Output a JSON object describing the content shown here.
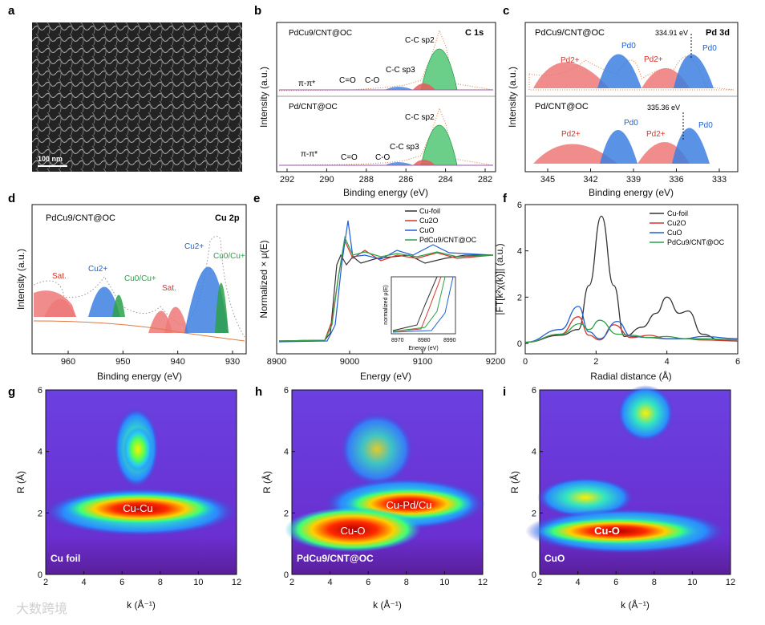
{
  "watermark": "大数跨境",
  "panels": {
    "a": {
      "label": "a",
      "scale_bar": "100 nm"
    },
    "b": {
      "label": "b",
      "element": "C 1s",
      "top_sample": "PdCu9/CNT@OC",
      "bottom_sample": "Pd/CNT@OC",
      "peaks": [
        "π-π*",
        "C=O",
        "C-O",
        "C-C sp3",
        "C-C sp2"
      ],
      "xlabel": "Binding energy (eV)",
      "ylabel": "Intensity (a.u.)",
      "xticks": [
        "292",
        "290",
        "288",
        "286",
        "284",
        "282"
      ]
    },
    "c": {
      "label": "c",
      "element": "Pd 3d",
      "top_sample": "PdCu9/CNT@OC",
      "bottom_sample": "Pd/CNT@OC",
      "top_value": "334.91 eV",
      "bottom_value": "335.36 eV",
      "pd2": "Pd2+",
      "pd0": "Pd0",
      "xlabel": "Binding energy (eV)",
      "ylabel": "Intensity (a.u.)",
      "xticks": [
        "345",
        "342",
        "339",
        "336",
        "333"
      ]
    },
    "d": {
      "label": "d",
      "element": "Cu 2p",
      "sample": "PdCu9/CNT@OC",
      "peaks": [
        "Sat.",
        "Cu2+",
        "Cu0/Cu+",
        "Sat.",
        "Cu2+",
        "Cu0/Cu+"
      ],
      "xlabel": "Binding energy (eV)",
      "ylabel": "Intensity (a.u.)",
      "xticks": [
        "960",
        "950",
        "940",
        "930"
      ]
    },
    "e": {
      "label": "e",
      "xlabel": "Energy (eV)",
      "ylabel": "Normalized × μ(E)",
      "xticks": [
        "8900",
        "9000",
        "9100",
        "9200"
      ],
      "legend": [
        "Cu-foil",
        "Cu2O",
        "CuO",
        "PdCu9/CNT@OC"
      ],
      "inset": {
        "xlabel": "Energy (eV)",
        "ylabel": "normalized μ(E)",
        "xticks": [
          "8970",
          "8980",
          "8990"
        ]
      }
    },
    "f": {
      "label": "f",
      "xlabel": "Radial distance (Å)",
      "ylabel": "|FT[k²χ(k)]| (a.u.)",
      "xticks": [
        "0",
        "2",
        "4",
        "6"
      ],
      "yticks": [
        "0",
        "2",
        "4",
        "6"
      ],
      "legend": [
        "Cu-foil",
        "Cu2O",
        "CuO",
        "PdCu9/CNT@OC"
      ]
    },
    "g": {
      "label": "g",
      "sample": "Cu foil",
      "peak_labels": [
        "Cu-Cu"
      ],
      "xlabel": "k (Å⁻¹)",
      "ylabel": "R (Å)",
      "xticks": [
        "2",
        "4",
        "6",
        "8",
        "10",
        "12"
      ],
      "yticks": [
        "0",
        "2",
        "4",
        "6"
      ]
    },
    "h": {
      "label": "h",
      "sample": "PdCu9/CNT@OC",
      "peak_labels": [
        "Cu-Pd/Cu",
        "Cu-O"
      ],
      "xlabel": "k (Å⁻¹)",
      "ylabel": "R (Å)",
      "xticks": [
        "2",
        "4",
        "6",
        "8",
        "10",
        "12"
      ],
      "yticks": [
        "0",
        "2",
        "4",
        "6"
      ]
    },
    "i": {
      "label": "i",
      "sample": "CuO",
      "peak_labels": [
        "Cu-O"
      ],
      "xlabel": "k (Å⁻¹)",
      "ylabel": "R (Å)",
      "xticks": [
        "2",
        "4",
        "6",
        "8",
        "10",
        "12"
      ],
      "yticks": [
        "0",
        "2",
        "4",
        "6"
      ]
    }
  },
  "chart_data": [
    {
      "panel": "e",
      "type": "line",
      "title": "",
      "xlabel": "Energy (eV)",
      "ylabel": "Normalized × μ(E)",
      "xlim": [
        8900,
        9200
      ],
      "series": [
        {
          "name": "Cu-foil"
        },
        {
          "name": "Cu2O"
        },
        {
          "name": "CuO"
        },
        {
          "name": "PdCu9/CNT@OC"
        }
      ]
    },
    {
      "panel": "f",
      "type": "line",
      "title": "",
      "xlabel": "Radial distance (Å)",
      "ylabel": "|FT[k²χ(k)]| (a.u.)",
      "xlim": [
        0,
        6
      ],
      "ylim": [
        0,
        6
      ],
      "series": [
        {
          "name": "Cu-foil",
          "x": [
            0,
            1,
            1.5,
            1.8,
            2.15,
            2.5,
            2.8,
            3.3,
            3.7,
            4.0,
            4.35,
            4.6,
            5.0,
            5.5,
            6
          ],
          "values": [
            0.05,
            0.35,
            0.6,
            2.5,
            5.5,
            2.5,
            0.3,
            0.7,
            1.3,
            2.0,
            1.3,
            1.4,
            0.4,
            0.15,
            0.1
          ]
        },
        {
          "name": "Cu2O",
          "x": [
            0,
            1,
            1.5,
            1.8,
            2.1,
            2.5,
            3.0,
            3.5,
            4.0,
            4.5,
            5.0,
            6
          ],
          "values": [
            0.05,
            0.4,
            1.15,
            0.35,
            0.15,
            0.8,
            0.25,
            0.35,
            0.2,
            0.2,
            0.15,
            0.1
          ]
        },
        {
          "name": "CuO",
          "x": [
            0,
            1,
            1.5,
            1.8,
            2.1,
            2.6,
            3.0,
            3.5,
            4.0,
            4.5,
            5.0,
            6
          ],
          "values": [
            0.05,
            0.6,
            1.6,
            0.5,
            0.2,
            0.95,
            0.3,
            0.25,
            0.2,
            0.2,
            0.3,
            0.2
          ]
        },
        {
          "name": "PdCu9/CNT@OC",
          "x": [
            0,
            1,
            1.55,
            1.8,
            2.1,
            2.6,
            3.0,
            3.5,
            4.0,
            4.5,
            5.0,
            6
          ],
          "values": [
            0.05,
            0.4,
            0.85,
            0.6,
            1.0,
            0.4,
            0.35,
            0.25,
            0.3,
            0.2,
            0.2,
            0.15
          ]
        }
      ]
    }
  ],
  "colors": {
    "black": "#333333",
    "red": "#d9342b",
    "blue": "#1f5fd6",
    "green": "#2ca14a"
  }
}
